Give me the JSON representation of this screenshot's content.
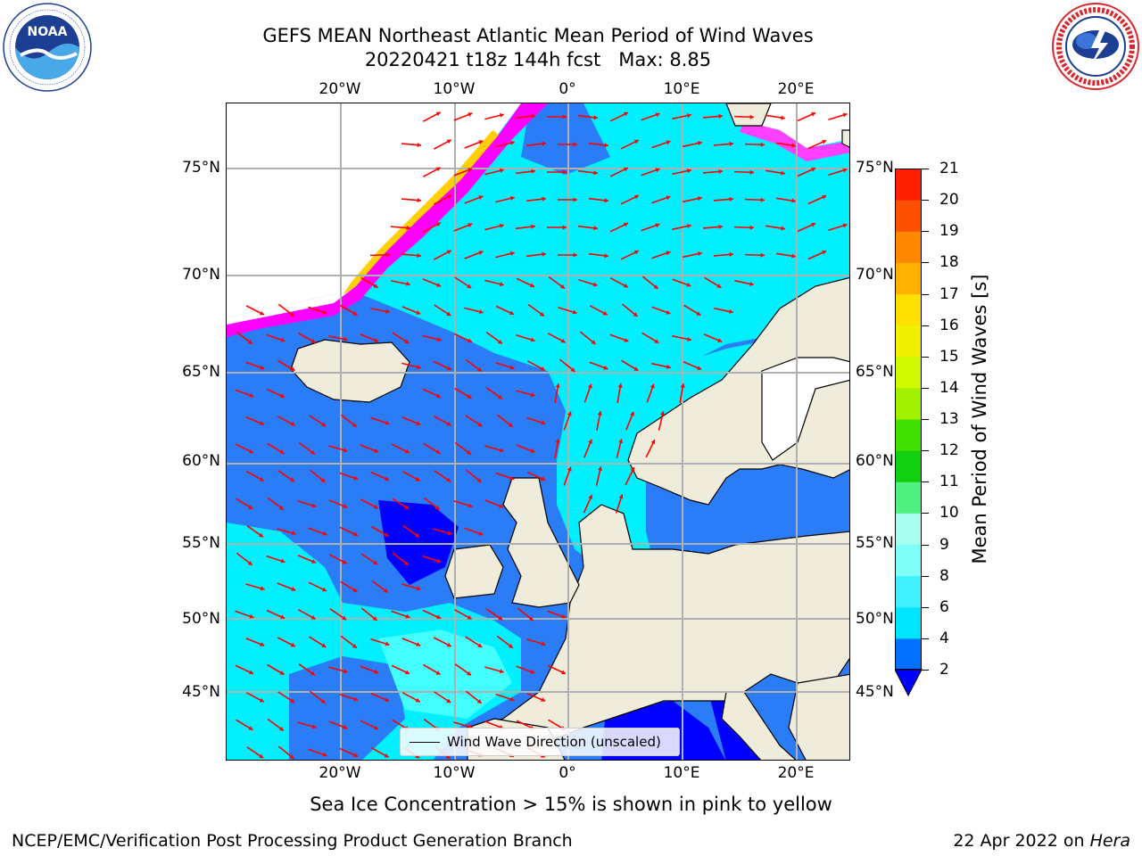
{
  "title": {
    "line1": "GEFS MEAN Northeast Atlantic Mean Period of Wind Waves",
    "line2": "20220421 t18z 144h fcst   Max: 8.85"
  },
  "logos": {
    "noaa_text": "NOAA",
    "noaa_ring": "NATIONAL OCEANIC AND ATMOSPHERIC ADMINISTRATION · U.S. DEPARTMENT OF COMMERCE",
    "nws_ring": "NATIONAL WEATHER SERVICE"
  },
  "map": {
    "lon_labels": [
      "20°W",
      "10°W",
      "0°",
      "10°E",
      "20°E"
    ],
    "lat_labels": [
      "75°N",
      "70°N",
      "65°N",
      "60°N",
      "55°N",
      "50°N",
      "45°N"
    ],
    "legend_label": "Wind Wave Direction (unscaled)",
    "colors": {
      "land": "#efecdc",
      "ice_free_white": "#ffffff",
      "sea_2_4": "#2a7cf7",
      "sea_4_6": "#00f0ff",
      "sea_6_8": "#44ffff",
      "sea_below_2": "#0000ff",
      "arrow": "#ff0000",
      "grid": "#b0b0b0"
    }
  },
  "colorbar": {
    "label": "Mean Period of Wind Waves [s]",
    "ticks": [
      "2",
      "4",
      "6",
      "8",
      "9",
      "10",
      "11",
      "12",
      "13",
      "14",
      "15",
      "16",
      "17",
      "18",
      "19",
      "20",
      "21"
    ],
    "colors": [
      "#0072ff",
      "#00e5ff",
      "#40f0ff",
      "#80fff8",
      "#a8fff0",
      "#50f080",
      "#10d010",
      "#40e000",
      "#a0f000",
      "#d0f800",
      "#f0f000",
      "#ffe000",
      "#ffb000",
      "#ff8800",
      "#ff5000",
      "#ff2000"
    ]
  },
  "annotation": "Sea Ice Concentration > 15% is shown in pink to yellow",
  "footer": {
    "left": "NCEP/EMC/Verification Post Processing Product Generation Branch",
    "right_prefix": "22 Apr 2022 on ",
    "right_host": "Hera"
  }
}
